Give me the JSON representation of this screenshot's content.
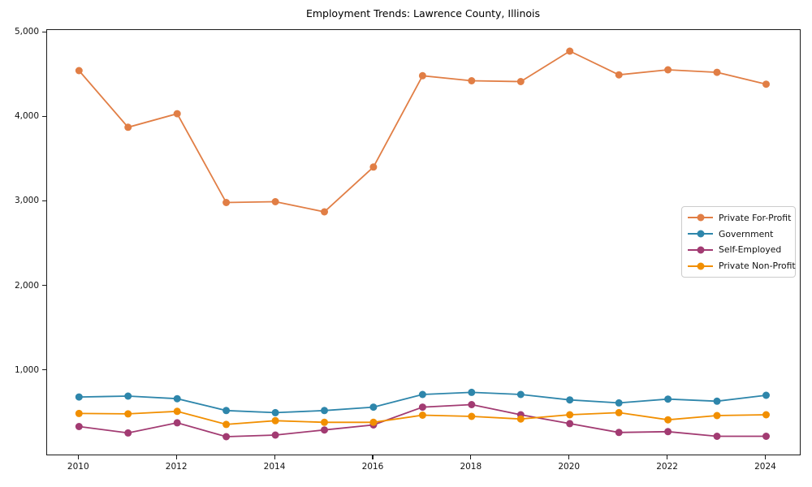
{
  "title": "Employment Trends: Lawrence County, Illinois",
  "chart_data": {
    "type": "line",
    "title": "Employment Trends: Lawrence County, Illinois",
    "xlabel": "",
    "ylabel": "",
    "x": [
      2010,
      2011,
      2012,
      2013,
      2014,
      2015,
      2016,
      2017,
      2018,
      2019,
      2020,
      2021,
      2022,
      2023,
      2024
    ],
    "series": [
      {
        "name": "Private For-Profit",
        "color": "#E17E45",
        "values": [
          4550,
          3880,
          4040,
          2990,
          3000,
          2880,
          3410,
          4490,
          4430,
          4420,
          4780,
          4500,
          4560,
          4530,
          4390
        ]
      },
      {
        "name": "Government",
        "color": "#2E86AB",
        "values": [
          690,
          700,
          670,
          530,
          505,
          530,
          570,
          720,
          745,
          720,
          655,
          620,
          665,
          640,
          710
        ]
      },
      {
        "name": "Self-Employed",
        "color": "#A23B72",
        "values": [
          340,
          265,
          385,
          220,
          240,
          300,
          360,
          570,
          600,
          480,
          375,
          270,
          280,
          225,
          225
        ]
      },
      {
        "name": "Private Non-Profit",
        "color": "#F18F01",
        "values": [
          495,
          490,
          520,
          365,
          410,
          390,
          390,
          475,
          460,
          430,
          480,
          505,
          420,
          470,
          480
        ]
      }
    ],
    "xticks": [
      2010,
      2012,
      2014,
      2016,
      2018,
      2020,
      2022,
      2024
    ],
    "xtick_labels": [
      "2010",
      "2012",
      "2014",
      "2016",
      "2018",
      "2020",
      "2022",
      "2024"
    ],
    "yticks": [
      1000,
      2000,
      3000,
      4000,
      5000
    ],
    "ytick_labels": [
      "1,000",
      "2,000",
      "3,000",
      "4,000",
      "5,000"
    ],
    "xlim": [
      2009.35,
      2024.72
    ],
    "ylim": [
      -10,
      5030
    ],
    "grid": false,
    "legend_position": "center-right",
    "marker": "circle",
    "line_width": 1.8,
    "marker_size": 9
  }
}
